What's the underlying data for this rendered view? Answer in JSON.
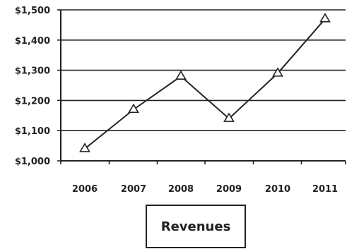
{
  "chart_data": {
    "type": "line",
    "categories": [
      "2006",
      "2007",
      "2008",
      "2009",
      "2010",
      "2011"
    ],
    "series": [
      {
        "name": "Revenues",
        "values": [
          1040,
          1170,
          1280,
          1140,
          1290,
          1470
        ]
      }
    ],
    "ylim": [
      1000,
      1500
    ],
    "y_ticks": [
      1000,
      1100,
      1200,
      1300,
      1400,
      1500
    ],
    "y_tick_labels": [
      "$1,000",
      "$1,100",
      "$1,200",
      "$1,300",
      "$1,400",
      "$1,500"
    ],
    "grid": true,
    "marker": "triangle",
    "legend_position": "bottom"
  },
  "colors": {
    "line": "#222222",
    "grid": "#222222",
    "marker_fill": "#ffffff"
  }
}
